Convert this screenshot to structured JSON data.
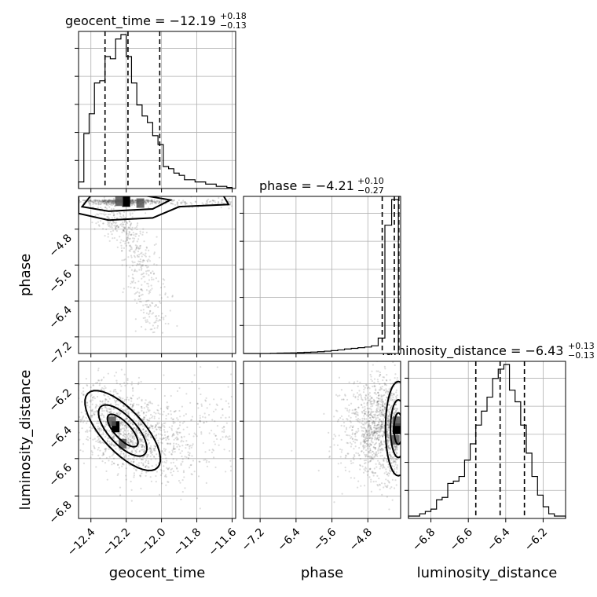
{
  "chart_data": {
    "type": "corner",
    "parameters": [
      "geocent_time",
      "phase",
      "luminosity_distance"
    ],
    "titles": [
      {
        "parameter": "geocent_time",
        "prefix": "geocent_time = ",
        "median": "−12.19",
        "upper": "+0.18",
        "lower": "−0.13"
      },
      {
        "parameter": "phase",
        "prefix": "phase = ",
        "median": "−4.21",
        "upper": "+0.10",
        "lower": "−0.27"
      },
      {
        "parameter": "luminosity_distance",
        "prefix": "luminosity_distance = ",
        "median": "−6.43",
        "upper": "+0.13",
        "lower": "−0.13"
      }
    ],
    "axis_labels": {
      "x": [
        "geocent_time",
        "phase",
        "luminosity_distance"
      ],
      "y": [
        "phase",
        "luminosity_distance"
      ]
    },
    "ranges": {
      "geocent_time": [
        -12.47,
        -11.58
      ],
      "phase": [
        -7.57,
        -4.07
      ],
      "luminosity_distance": [
        -6.92,
        -6.08
      ]
    },
    "ticks": {
      "geocent_time": {
        "values": [
          -12.4,
          -12.2,
          -12.0,
          -11.8,
          -11.6
        ],
        "labels": [
          "−12.4",
          "−12.2",
          "−12.0",
          "−11.8",
          "−11.6"
        ]
      },
      "phase": {
        "values": [
          -7.2,
          -6.4,
          -5.6,
          -4.8
        ],
        "labels": [
          "−7.2",
          "−6.4",
          "−5.6",
          "−4.8"
        ]
      },
      "luminosity_distance": {
        "values": [
          -6.8,
          -6.6,
          -6.4,
          -6.2
        ],
        "labels": [
          "−6.8",
          "−6.6",
          "−6.4",
          "−6.2"
        ]
      }
    },
    "quantiles": {
      "geocent_time": [
        -12.32,
        -12.19,
        -12.01
      ],
      "phase": [
        -4.48,
        -4.21,
        -4.11
      ],
      "luminosity_distance": [
        -6.56,
        -6.43,
        -6.3
      ]
    },
    "histograms": {
      "geocent_time": {
        "edges": [
          -12.47,
          -12.44,
          -12.41,
          -12.38,
          -12.35,
          -12.32,
          -12.29,
          -12.26,
          -12.23,
          -12.2,
          -12.17,
          -12.14,
          -12.11,
          -12.08,
          -12.05,
          -12.02,
          -11.99,
          -11.96,
          -11.93,
          -11.9,
          -11.87,
          -11.84,
          -11.81,
          -11.78,
          -11.75,
          -11.72,
          -11.69,
          -11.66,
          -11.63,
          -11.6
        ],
        "counts": [
          3,
          25,
          34,
          48,
          49,
          60,
          59,
          68,
          70,
          60,
          48,
          38,
          33,
          30,
          24,
          20,
          10,
          9,
          7,
          6,
          4,
          4,
          3,
          3,
          2,
          2,
          1,
          1,
          0.5
        ]
      },
      "phase": {
        "edges": [
          -7.57,
          -7.42,
          -7.27,
          -7.12,
          -6.97,
          -6.82,
          -6.67,
          -6.52,
          -6.37,
          -6.22,
          -6.07,
          -5.92,
          -5.77,
          -5.62,
          -5.47,
          -5.32,
          -5.17,
          -5.02,
          -4.87,
          -4.72,
          -4.57,
          -4.42,
          -4.27,
          -4.12
        ],
        "counts": [
          0,
          0,
          0,
          0,
          0.2,
          0.3,
          0.4,
          0.5,
          0.7,
          0.9,
          1.1,
          1.4,
          1.8,
          2.2,
          2.8,
          3.5,
          4,
          4.5,
          5,
          6,
          12,
          100,
          120
        ]
      },
      "luminosity_distance": {
        "edges": [
          -6.92,
          -6.89,
          -6.86,
          -6.83,
          -6.8,
          -6.77,
          -6.74,
          -6.71,
          -6.68,
          -6.65,
          -6.62,
          -6.59,
          -6.56,
          -6.53,
          -6.5,
          -6.47,
          -6.44,
          -6.41,
          -6.38,
          -6.35,
          -6.32,
          -6.29,
          -6.26,
          -6.23,
          -6.2,
          -6.17,
          -6.14,
          -6.11,
          -6.08
        ],
        "counts": [
          1,
          1,
          2,
          3,
          4,
          8,
          9,
          15,
          16,
          18,
          25,
          32,
          40,
          46,
          52,
          60,
          64,
          66,
          55,
          50,
          40,
          28,
          18,
          10,
          5,
          2,
          1,
          1
        ]
      }
    },
    "pairs": [
      {
        "x": "geocent_time",
        "y": "phase",
        "mode": {
          "x": -12.2,
          "y": -4.18
        },
        "hi_density": [
          {
            "x": -12.24,
            "y": -4.18
          },
          {
            "x": -12.12,
            "y": -4.22
          }
        ]
      },
      {
        "x": "geocent_time",
        "y": "luminosity_distance",
        "mode": {
          "x": -12.26,
          "y": -6.43
        },
        "hi_density": [
          {
            "x": -12.28,
            "y": -6.4
          },
          {
            "x": -12.22,
            "y": -6.52
          }
        ]
      },
      {
        "x": "phase",
        "y": "luminosity_distance",
        "mode": {
          "x": -4.16,
          "y": -6.44
        },
        "hi_density": [
          {
            "x": -4.16,
            "y": -6.4
          },
          {
            "x": -4.18,
            "y": -6.5
          }
        ]
      }
    ],
    "grid": true,
    "colors": {
      "line": "#000000",
      "grid": "#b0b0b0",
      "points": "#555555"
    }
  }
}
